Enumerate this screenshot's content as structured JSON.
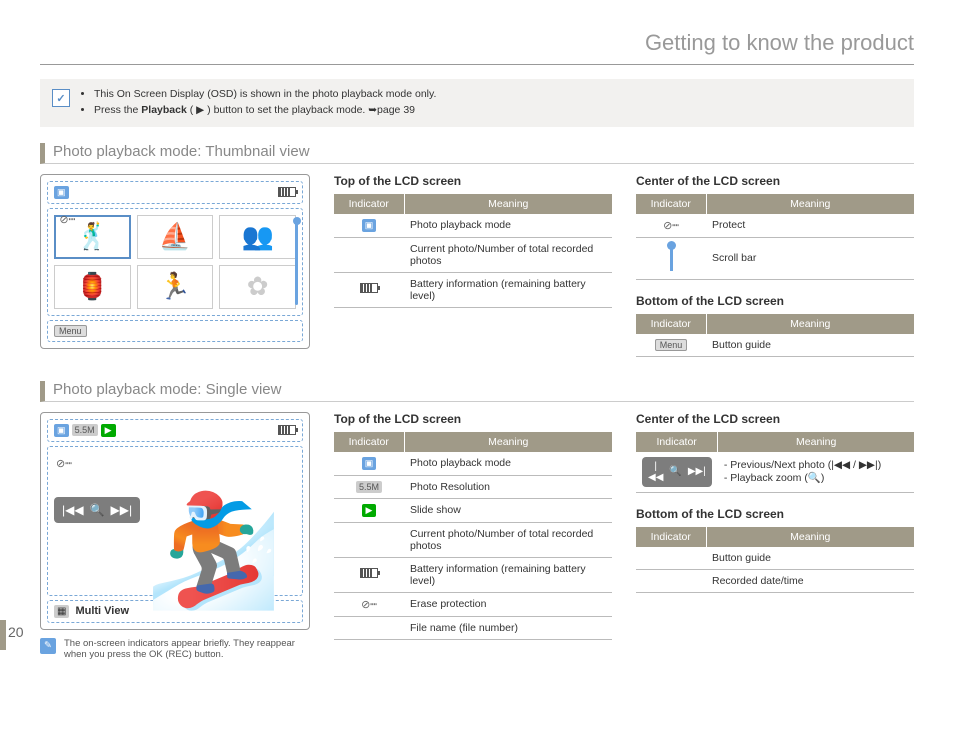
{
  "page_number": "20",
  "main_title": "Getting to know the product",
  "note": {
    "line1_pre": "This On Screen Display (OSD) is shown in the photo playback mode only.",
    "line2_pre": "Press the ",
    "line2_bold": "Playback",
    "line2_post": " ( ▶ ) button to set the playback mode. ➥page 39"
  },
  "section1_title": "Photo playback mode: Thumbnail view",
  "section2_title": "Photo playback mode: Single view",
  "heading_top": "Top of the LCD screen",
  "heading_center": "Center of the LCD screen",
  "heading_bottom": "Bottom of the LCD screen",
  "col_indicator": "Indicator",
  "col_meaning": "Meaning",
  "tbl1_top": [
    {
      "meaning": "Photo playback mode"
    },
    {
      "meaning": "Current photo/Number of total recorded photos"
    },
    {
      "meaning": "Battery information (remaining battery level)"
    }
  ],
  "tbl1_center": [
    {
      "meaning": "Protect"
    },
    {
      "meaning": "Scroll bar"
    }
  ],
  "tbl1_bottom": [
    {
      "meaning": "Button guide"
    }
  ],
  "tbl2_top": [
    {
      "meaning": "Photo playback mode"
    },
    {
      "meaning": "Photo Resolution"
    },
    {
      "meaning": "Slide show"
    },
    {
      "meaning": "Current photo/Number of total recorded photos"
    },
    {
      "meaning": "Battery information (remaining battery level)"
    },
    {
      "meaning": "Erase protection"
    },
    {
      "meaning": "File name (file number)"
    }
  ],
  "tbl2_center": [
    {
      "meaning_html": "- Previous/Next photo (|◀◀ / ▶▶|)\n- Playback zoom (🔍)"
    }
  ],
  "tbl2_bottom": [
    {
      "meaning": "Button guide"
    },
    {
      "meaning": "Recorded date/time"
    }
  ],
  "multi_view_label": "Multi View",
  "footnote_text": "The on-screen indicators appear briefly. They reappear when you press the OK (REC) button.",
  "menu_label": "Menu",
  "res_label": "5.5M"
}
